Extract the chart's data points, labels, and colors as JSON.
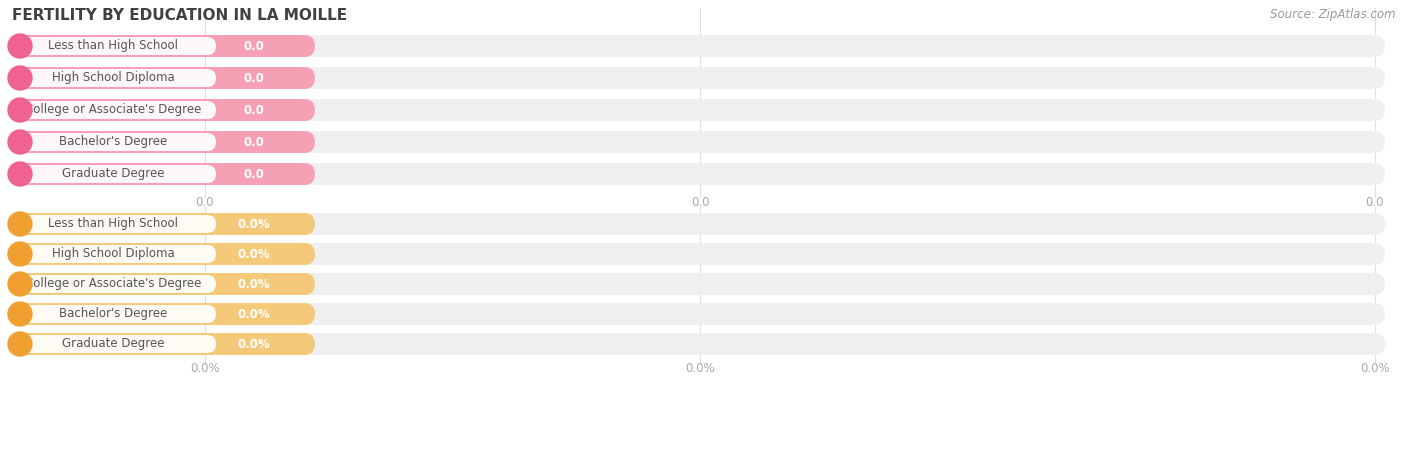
{
  "title": "FERTILITY BY EDUCATION IN LA MOILLE",
  "source": "Source: ZipAtlas.com",
  "categories": [
    "Less than High School",
    "High School Diploma",
    "College or Associate's Degree",
    "Bachelor's Degree",
    "Graduate Degree"
  ],
  "group1_labels": [
    "0.0",
    "0.0",
    "0.0",
    "0.0",
    "0.0"
  ],
  "group2_labels": [
    "0.0%",
    "0.0%",
    "0.0%",
    "0.0%",
    "0.0%"
  ],
  "group1_bar_color": "#f5a0b5",
  "group1_circle_color": "#f06292",
  "group2_bar_color": "#f5c97a",
  "group2_circle_color": "#f0a030",
  "bar_track_color": "#efefef",
  "title_color": "#404040",
  "label_color": "#555555",
  "value_color": "#ffffff",
  "xtick1_labels": [
    "0.0",
    "0.0",
    "0.0"
  ],
  "xtick2_labels": [
    "0.0%",
    "0.0%",
    "0.0%"
  ],
  "background_color": "#ffffff",
  "grid_color": "#dddddd",
  "source_color": "#999999"
}
